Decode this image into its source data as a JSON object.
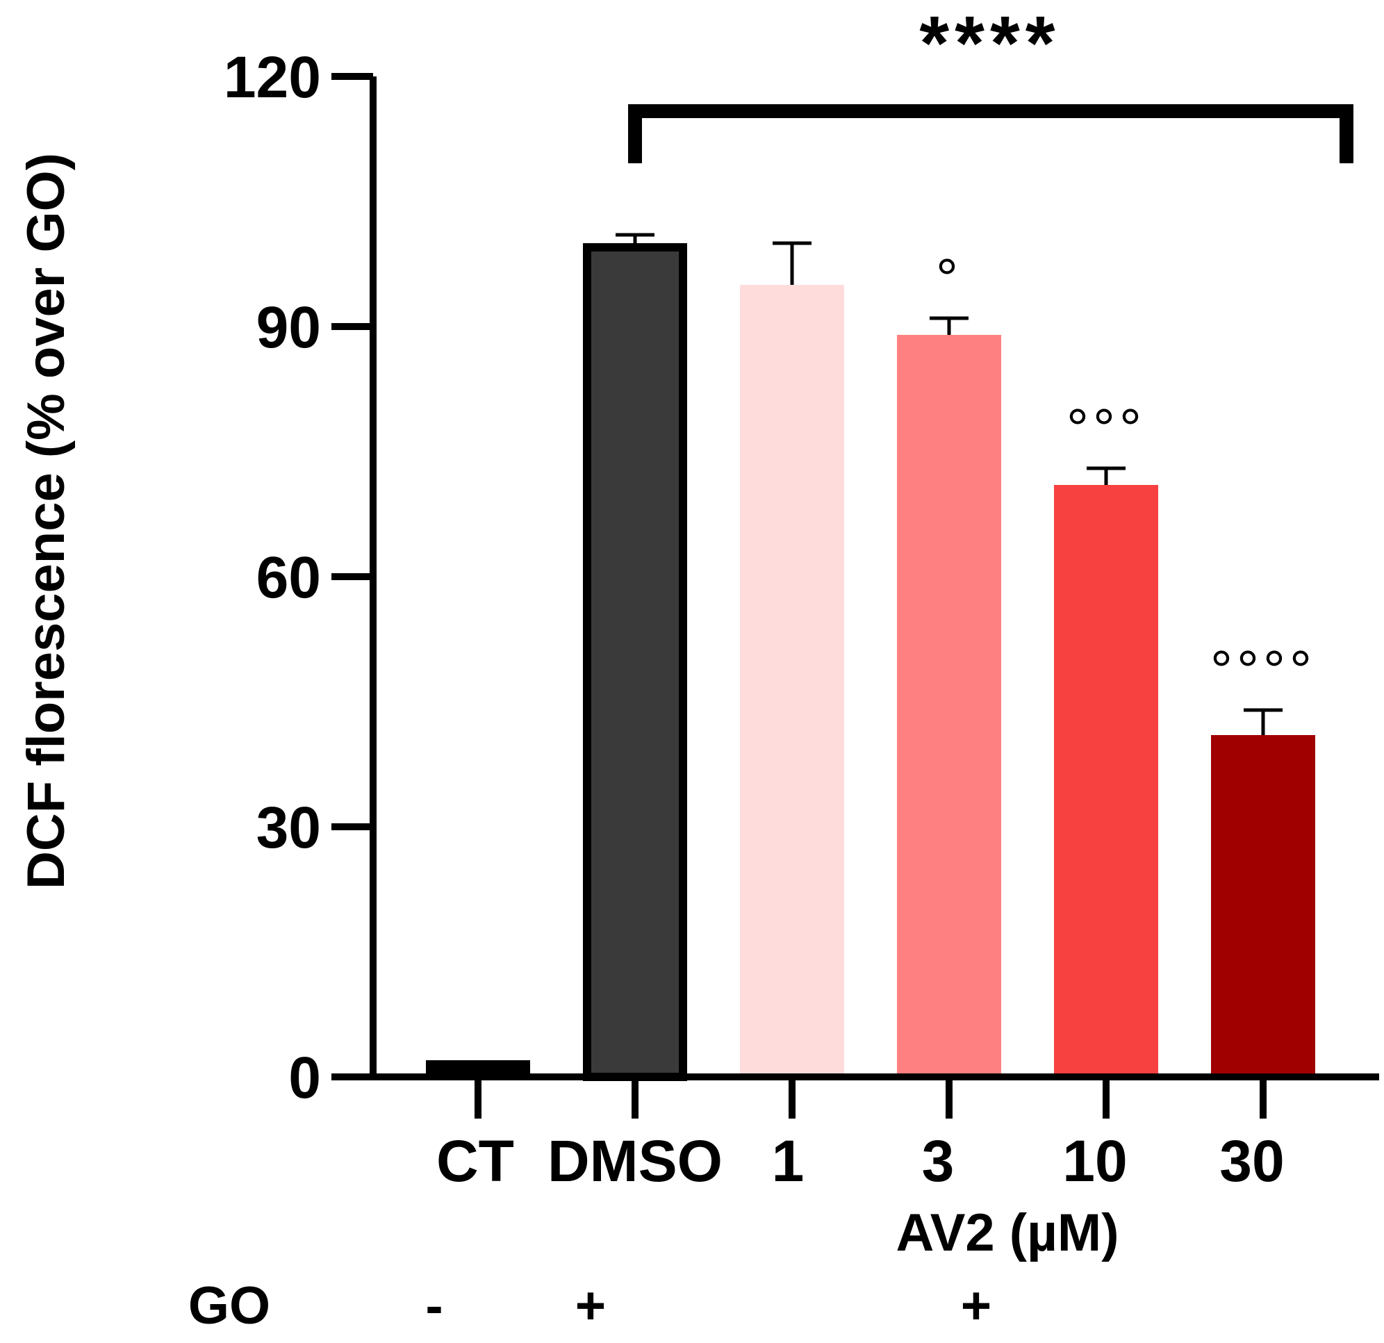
{
  "chart_data": {
    "type": "bar",
    "title": "",
    "ylabel": "DCF florescence (% over GO)",
    "xlabel": "AV2 (µM)",
    "ylim": [
      0,
      120
    ],
    "yticks": [
      0,
      30,
      60,
      90,
      120
    ],
    "categories": [
      "CT",
      "DMSO",
      "1",
      "3",
      "10",
      "30"
    ],
    "values": [
      2,
      100,
      95,
      89,
      71,
      41
    ],
    "errors": [
      0,
      1,
      5,
      2,
      2,
      3
    ],
    "colors": [
      "#000000",
      "#3a3a3a",
      "#ffdcdc",
      "#ff8080",
      "#f74040",
      "#a10000"
    ],
    "annotations": [
      "",
      "",
      "",
      "°",
      "°°°",
      "°°°°"
    ],
    "significance": {
      "label": "****",
      "from": "DMSO",
      "to": "30"
    },
    "go_row": {
      "label": "GO",
      "signs": [
        "-",
        "+",
        "+"
      ]
    }
  }
}
